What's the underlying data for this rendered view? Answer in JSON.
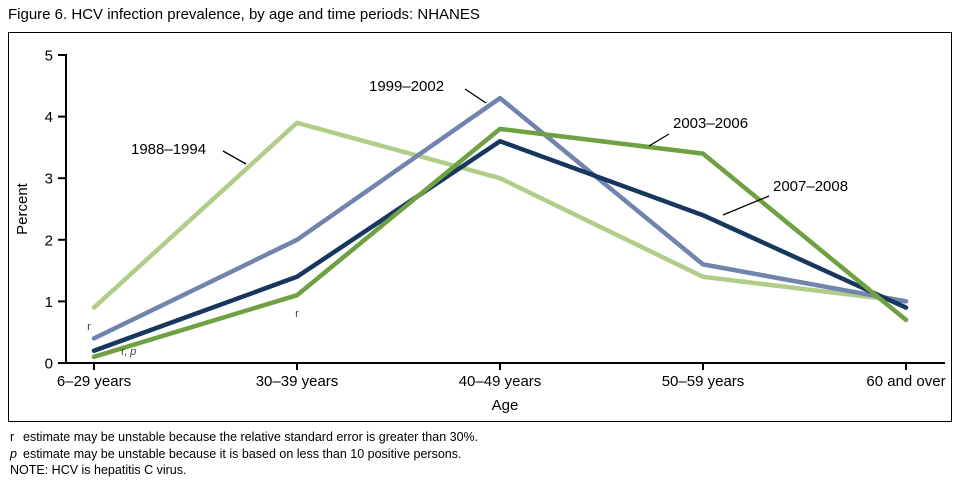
{
  "chart_data": {
    "type": "line",
    "title": "Figure 6. HCV infection prevalence, by age and time periods: NHANES",
    "xlabel": "Age",
    "ylabel": "Percent",
    "ylim": [
      0,
      5
    ],
    "yticks": [
      0,
      1,
      2,
      3,
      4,
      5
    ],
    "grid": false,
    "legend": "inline-labels",
    "categories": [
      "6–29 years",
      "30–39 years",
      "40–49 years",
      "50–59 years",
      "60 and over"
    ],
    "series": [
      {
        "name": "1988–1994",
        "color": "#b2cc8a",
        "values": [
          0.9,
          3.9,
          3.0,
          1.4,
          1.0
        ]
      },
      {
        "name": "1999–2002",
        "color": "#7184ad",
        "values": [
          0.4,
          2.0,
          4.3,
          1.6,
          1.0
        ]
      },
      {
        "name": "2003–2006",
        "color": "#6fa042",
        "values": [
          0.1,
          1.1,
          3.8,
          3.4,
          0.7
        ]
      },
      {
        "name": "2007–2008",
        "color": "#17375e",
        "values": [
          0.2,
          1.4,
          3.6,
          2.4,
          0.9
        ]
      }
    ],
    "annotations": [
      {
        "text": "r"
      },
      {
        "prefix": "r, ",
        "italic": "p"
      },
      {
        "text": "r"
      }
    ]
  },
  "footnotes": [
    {
      "marker": "r",
      "text": "estimate may be unstable because the relative standard error is greater than 30%."
    },
    {
      "marker": "p",
      "marker_italic": true,
      "text": "estimate may be unstable because it is based on less than 10 positive persons."
    },
    {
      "marker": "",
      "text": "NOTE: HCV is hepatitis C virus."
    }
  ]
}
